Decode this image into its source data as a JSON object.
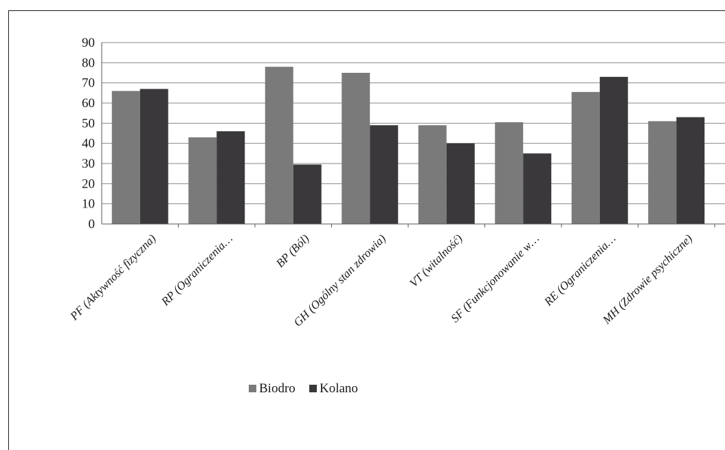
{
  "chart_data": {
    "type": "bar",
    "categories": [
      "PF (Aktywność fizyczna)",
      "RP (Ograniczenia…",
      "BP (Ból)",
      "GH (Ogólny stan zdrowia)",
      "VT (witalność)",
      "SF (Funkcjonowanie w…",
      "RE (Ograniczenia…",
      "MH (Zdrowie psychiczne)"
    ],
    "series": [
      {
        "name": "Biodro",
        "values": [
          66,
          43,
          78,
          75,
          49,
          50.5,
          65.5,
          51
        ],
        "color": "#7a7a7a"
      },
      {
        "name": "Kolano",
        "values": [
          67,
          46,
          29.5,
          49,
          40,
          35,
          73,
          53
        ],
        "color": "#3a383b"
      }
    ],
    "y_ticks": [
      "0",
      "10",
      "20",
      "30",
      "40",
      "50",
      "60",
      "70",
      "80",
      "90"
    ],
    "ylim": [
      0,
      90
    ],
    "grid": true,
    "legend": "bottom",
    "title": "",
    "xlabel": "",
    "ylabel": ""
  }
}
